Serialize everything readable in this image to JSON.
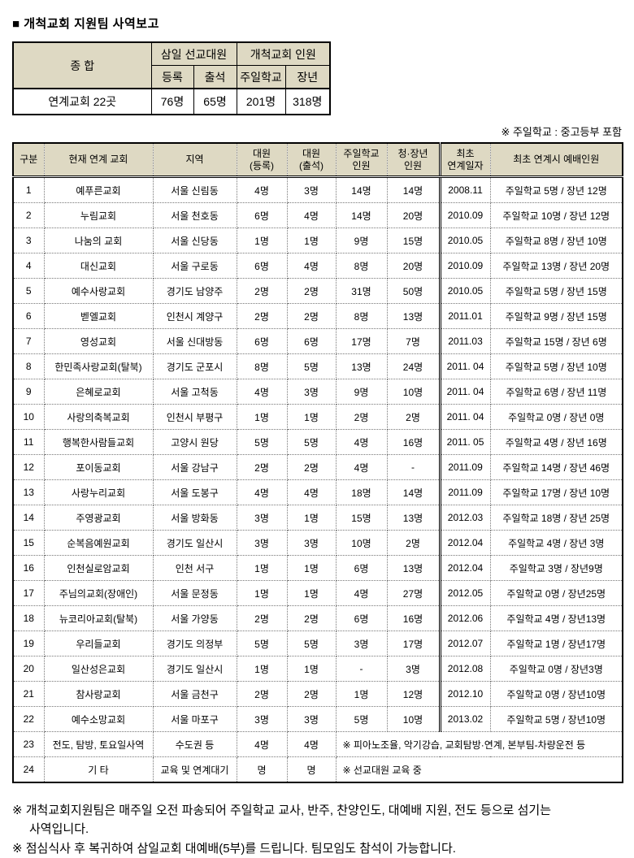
{
  "page": {
    "title": "■ 개척교회 지원팀 사역보고",
    "note_right": "※ 주일학교 : 중고등부 포함"
  },
  "summary_table": {
    "total_label": "종 합",
    "group1_label": "삼일 선교대원",
    "group2_label": "개척교회 인원",
    "sub_headers": [
      "등록",
      "출석",
      "주일학교",
      "장년"
    ],
    "row": {
      "label": "연계교회 22곳",
      "values": [
        "76명",
        "65명",
        "201명",
        "318명"
      ]
    }
  },
  "main_table": {
    "headers": [
      "구분",
      "현재 연계 교회",
      "지역",
      "대원\n(등록)",
      "대원\n(출석)",
      "주일학교\n인원",
      "청·장년\n인원",
      "최초\n연계일자",
      "최초 연계시 예배인원"
    ],
    "rows": [
      {
        "no": "1",
        "church": "예푸른교회",
        "region": "서울 신림동",
        "reg": "4명",
        "att": "3명",
        "sunday": "14명",
        "adult": "14명",
        "date": "2008.11",
        "initial": "주일학교 5명 / 장년 12명"
      },
      {
        "no": "2",
        "church": "누림교회",
        "region": "서울 천호동",
        "reg": "6명",
        "att": "4명",
        "sunday": "14명",
        "adult": "20명",
        "date": "2010.09",
        "initial": "주일학교 10명 / 장년 12명"
      },
      {
        "no": "3",
        "church": "나눔의 교회",
        "region": "서울 신당동",
        "reg": "1명",
        "att": "1명",
        "sunday": "9명",
        "adult": "15명",
        "date": "2010.05",
        "initial": "주일학교 8명 / 장년 10명"
      },
      {
        "no": "4",
        "church": "대신교회",
        "region": "서울 구로동",
        "reg": "6명",
        "att": "4명",
        "sunday": "8명",
        "adult": "20명",
        "date": "2010.09",
        "initial": "주일학교 13명 / 장년 20명"
      },
      {
        "no": "5",
        "church": "예수사랑교회",
        "region": "경기도 남양주",
        "reg": "2명",
        "att": "2명",
        "sunday": "31명",
        "adult": "50명",
        "date": "2010.05",
        "initial": "주일학교 5명 / 장년 15명"
      },
      {
        "no": "6",
        "church": "벧엘교회",
        "region": "인천시 계양구",
        "reg": "2명",
        "att": "2명",
        "sunday": "8명",
        "adult": "13명",
        "date": "2011.01",
        "initial": "주일학교 9명 / 장년 15명"
      },
      {
        "no": "7",
        "church": "영성교회",
        "region": "서울 신대방동",
        "reg": "6명",
        "att": "6명",
        "sunday": "17명",
        "adult": "7명",
        "date": "2011.03",
        "initial": "주일학교 15명 / 장년 6명"
      },
      {
        "no": "8",
        "church": "한민족사랑교회(탈북)",
        "region": "경기도 군포시",
        "reg": "8명",
        "att": "5명",
        "sunday": "13명",
        "adult": "24명",
        "date": "2011. 04",
        "initial": "주일학교 5명 / 장년 10명"
      },
      {
        "no": "9",
        "church": "은혜로교회",
        "region": "서울 고척동",
        "reg": "4명",
        "att": "3명",
        "sunday": "9명",
        "adult": "10명",
        "date": "2011. 04",
        "initial": "주일학교 6명 / 장년 11명"
      },
      {
        "no": "10",
        "church": "사랑의축복교회",
        "region": "인천시 부평구",
        "reg": "1명",
        "att": "1명",
        "sunday": "2명",
        "adult": "2명",
        "date": "2011. 04",
        "initial": "주일학교 0명 / 장년 0명"
      },
      {
        "no": "11",
        "church": "행복한사람들교회",
        "region": "고양시 원당",
        "reg": "5명",
        "att": "5명",
        "sunday": "4명",
        "adult": "16명",
        "date": "2011. 05",
        "initial": "주일학교 4명 / 장년 16명"
      },
      {
        "no": "12",
        "church": "포이동교회",
        "region": "서울 강남구",
        "reg": "2명",
        "att": "2명",
        "sunday": "4명",
        "adult": "-",
        "date": "2011.09",
        "initial": "주일학교 14명 / 장년 46명"
      },
      {
        "no": "13",
        "church": "사랑누리교회",
        "region": "서울 도봉구",
        "reg": "4명",
        "att": "4명",
        "sunday": "18명",
        "adult": "14명",
        "date": "2011.09",
        "initial": "주일학교 17명 / 장년 10명"
      },
      {
        "no": "14",
        "church": "주영광교회",
        "region": "서울 방화동",
        "reg": "3명",
        "att": "1명",
        "sunday": "15명",
        "adult": "13명",
        "date": "2012.03",
        "initial": "주일학교 18명 / 장년 25명"
      },
      {
        "no": "15",
        "church": "순복음예원교회",
        "region": "경기도 일산시",
        "reg": "3명",
        "att": "3명",
        "sunday": "10명",
        "adult": "2명",
        "date": "2012.04",
        "initial": "주일학교 4명 / 장년 3명"
      },
      {
        "no": "16",
        "church": "인천실로암교회",
        "region": "인천 서구",
        "reg": "1명",
        "att": "1명",
        "sunday": "6명",
        "adult": "13명",
        "date": "2012.04",
        "initial": "주일학교 3명 / 장년9명"
      },
      {
        "no": "17",
        "church": "주님의교회(장애인)",
        "region": "서울 문정동",
        "reg": "1명",
        "att": "1명",
        "sunday": "4명",
        "adult": "27명",
        "date": "2012.05",
        "initial": "주일학교 0명 / 장년25명"
      },
      {
        "no": "18",
        "church": "뉴코리아교회(탈북)",
        "region": "서울 가양동",
        "reg": "2명",
        "att": "2명",
        "sunday": "6명",
        "adult": "16명",
        "date": "2012.06",
        "initial": "주일학교 4명 / 장년13명"
      },
      {
        "no": "19",
        "church": "우리들교회",
        "region": "경기도 의정부",
        "reg": "5명",
        "att": "5명",
        "sunday": "3명",
        "adult": "17명",
        "date": "2012.07",
        "initial": "주일학교 1명 / 장년17명"
      },
      {
        "no": "20",
        "church": "일산성은교회",
        "region": "경기도 일산시",
        "reg": "1명",
        "att": "1명",
        "sunday": "-",
        "adult": "3명",
        "date": "2012.08",
        "initial": "주일학교 0명 / 장년3명"
      },
      {
        "no": "21",
        "church": "참사랑교회",
        "region": "서울 금천구",
        "reg": "2명",
        "att": "2명",
        "sunday": "1명",
        "adult": "12명",
        "date": "2012.10",
        "initial": "주일학교 0명 / 장년10명"
      },
      {
        "no": "22",
        "church": "예수소망교회",
        "region": "서울 마포구",
        "reg": "3명",
        "att": "3명",
        "sunday": "5명",
        "adult": "10명",
        "date": "2013.02",
        "initial": "주일학교 5명 / 장년10명"
      },
      {
        "no": "23",
        "church": "전도, 탐방, 토요일사역",
        "region": "수도권 등",
        "reg": "4명",
        "att": "4명",
        "merged": "※ 피아노조율, 악기강습, 교회탐방·연계, 본부팀-차량운전 등"
      },
      {
        "no": "24",
        "church": "기 타",
        "region": "교육 및 연계대기",
        "reg": "명",
        "att": "명",
        "merged": "※ 선교대원 교육 중"
      }
    ]
  },
  "footnotes": {
    "lines": [
      "※ 개척교회지원팀은 매주일 오전 파송되어 주일학교 교사, 반주, 찬양인도, 대예배 지원, 전도 등으로 섬기는",
      "사역입니다.",
      "※ 점심식사 후 복귀하여 삼일교회 대예배(5부)를 드립니다. 팀모임도 참석이 가능합니다."
    ]
  }
}
